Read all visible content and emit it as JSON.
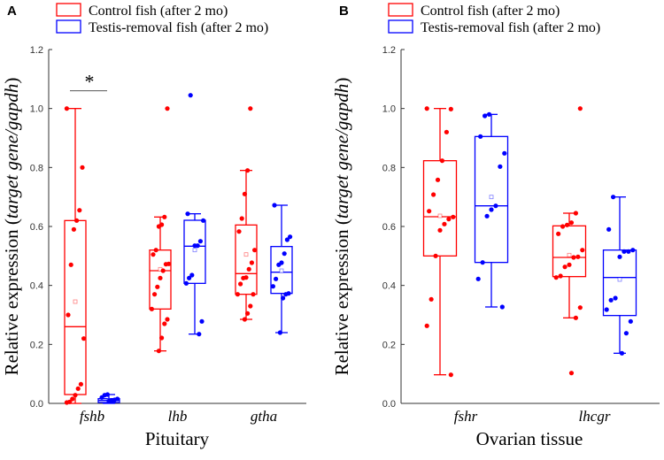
{
  "colors": {
    "control": "#ff0000",
    "testis": "#0000ff",
    "axis": "#333333"
  },
  "chart_data": [
    {
      "type": "box",
      "panel_label": "A",
      "title": "",
      "xlabel": "Pituitary",
      "ylabel_prefix": "Relative expression (",
      "ylabel_italic": "target gene/gapdh",
      "ylabel_suffix": ")",
      "ylim": [
        0,
        1.2
      ],
      "yticks": [
        "0.0",
        "0.2",
        "0.4",
        "0.6",
        "0.8",
        "1.0",
        "1.2"
      ],
      "legend": [
        "Control fish (after 2 mo)",
        "Testis-removal fish (after 2 mo)"
      ],
      "legend_position": "top-left",
      "significance": {
        "label": "*",
        "category": "fshb",
        "y": 1.06
      },
      "categories": [
        "fshb",
        "lhb",
        "gtha"
      ],
      "series": [
        {
          "name": "Control fish (after 2 mo)",
          "boxes": [
            {
              "whisker_low": 0.0,
              "q1": 0.03,
              "median": 0.26,
              "q3": 0.62,
              "whisker_high": 1.0,
              "mean": 0.345,
              "points": [
                1.0,
                0.8,
                0.655,
                0.62,
                0.59,
                0.47,
                0.3,
                0.22,
                0.065,
                0.05,
                0.028,
                0.015,
                0.005,
                0.003
              ]
            },
            {
              "whisker_low": 0.178,
              "q1": 0.32,
              "median": 0.45,
              "q3": 0.52,
              "whisker_high": 0.632,
              "mean": 0.455,
              "points": [
                1.0,
                0.632,
                0.606,
                0.6,
                0.52,
                0.505,
                0.473,
                0.472,
                0.45,
                0.425,
                0.395,
                0.37,
                0.32,
                0.285,
                0.27,
                0.222,
                0.178
              ]
            },
            {
              "whisker_low": 0.285,
              "q1": 0.37,
              "median": 0.44,
              "q3": 0.605,
              "whisker_high": 0.79,
              "mean": 0.505,
              "points": [
                1.0,
                0.79,
                0.71,
                0.627,
                0.583,
                0.52,
                0.477,
                0.455,
                0.427,
                0.425,
                0.405,
                0.37,
                0.37,
                0.33,
                0.305,
                0.285
              ]
            }
          ]
        },
        {
          "name": "Testis-removal fish (after 2 mo)",
          "boxes": [
            {
              "whisker_low": 0.0,
              "q1": 0.003,
              "median": 0.01,
              "q3": 0.016,
              "whisker_high": 0.03,
              "mean": 0.01,
              "points": [
                0.03,
                0.028,
                0.02,
                0.015,
                0.012,
                0.01,
                0.008
              ]
            },
            {
              "whisker_low": 0.235,
              "q1": 0.407,
              "median": 0.533,
              "q3": 0.621,
              "whisker_high": 0.643,
              "mean": 0.52,
              "points": [
                1.045,
                0.643,
                0.62,
                0.55,
                0.535,
                0.535,
                0.435,
                0.425,
                0.407,
                0.278,
                0.235
              ]
            },
            {
              "whisker_low": 0.24,
              "q1": 0.373,
              "median": 0.445,
              "q3": 0.532,
              "whisker_high": 0.672,
              "mean": 0.45,
              "points": [
                0.672,
                0.565,
                0.555,
                0.508,
                0.477,
                0.47,
                0.422,
                0.397,
                0.373,
                0.37,
                0.357,
                0.24
              ]
            }
          ]
        }
      ]
    },
    {
      "type": "box",
      "panel_label": "B",
      "title": "",
      "xlabel": "Ovarian tissue",
      "ylabel_prefix": "Relative expression (",
      "ylabel_italic": "target gene/gapdh",
      "ylabel_suffix": ")",
      "ylim": [
        0,
        1.2
      ],
      "yticks": [
        "0.0",
        "0.2",
        "0.4",
        "0.6",
        "0.8",
        "1.0",
        "1.2"
      ],
      "legend": [
        "Control fish (after 2 mo)",
        "Testis-removal fish (after 2 mo)"
      ],
      "legend_position": "top-left",
      "categories": [
        "fshr",
        "lhcgr"
      ],
      "series": [
        {
          "name": "Control fish (after 2 mo)",
          "boxes": [
            {
              "whisker_low": 0.097,
              "q1": 0.5,
              "median": 0.633,
              "q3": 0.823,
              "whisker_high": 1.0,
              "mean": 0.636,
              "points": [
                1.0,
                0.998,
                0.92,
                0.823,
                0.758,
                0.708,
                0.652,
                0.632,
                0.625,
                0.608,
                0.587,
                0.5,
                0.353,
                0.263,
                0.097
              ]
            },
            {
              "whisker_low": 0.29,
              "q1": 0.43,
              "median": 0.495,
              "q3": 0.602,
              "whisker_high": 0.645,
              "mean": 0.503,
              "points": [
                1.0,
                0.645,
                0.613,
                0.605,
                0.6,
                0.575,
                0.52,
                0.497,
                0.495,
                0.47,
                0.463,
                0.432,
                0.427,
                0.325,
                0.29,
                0.103
              ]
            }
          ]
        },
        {
          "name": "Testis-removal fish (after 2 mo)",
          "boxes": [
            {
              "whisker_low": 0.327,
              "q1": 0.478,
              "median": 0.67,
              "q3": 0.905,
              "whisker_high": 0.98,
              "mean": 0.7,
              "points": [
                0.98,
                0.975,
                0.905,
                0.848,
                0.803,
                0.67,
                0.657,
                0.635,
                0.478,
                0.422,
                0.327
              ]
            },
            {
              "whisker_low": 0.17,
              "q1": 0.298,
              "median": 0.427,
              "q3": 0.52,
              "whisker_high": 0.7,
              "mean": 0.42,
              "points": [
                0.7,
                0.59,
                0.52,
                0.515,
                0.515,
                0.497,
                0.357,
                0.35,
                0.318,
                0.278,
                0.238,
                0.17
              ]
            }
          ]
        }
      ]
    }
  ]
}
